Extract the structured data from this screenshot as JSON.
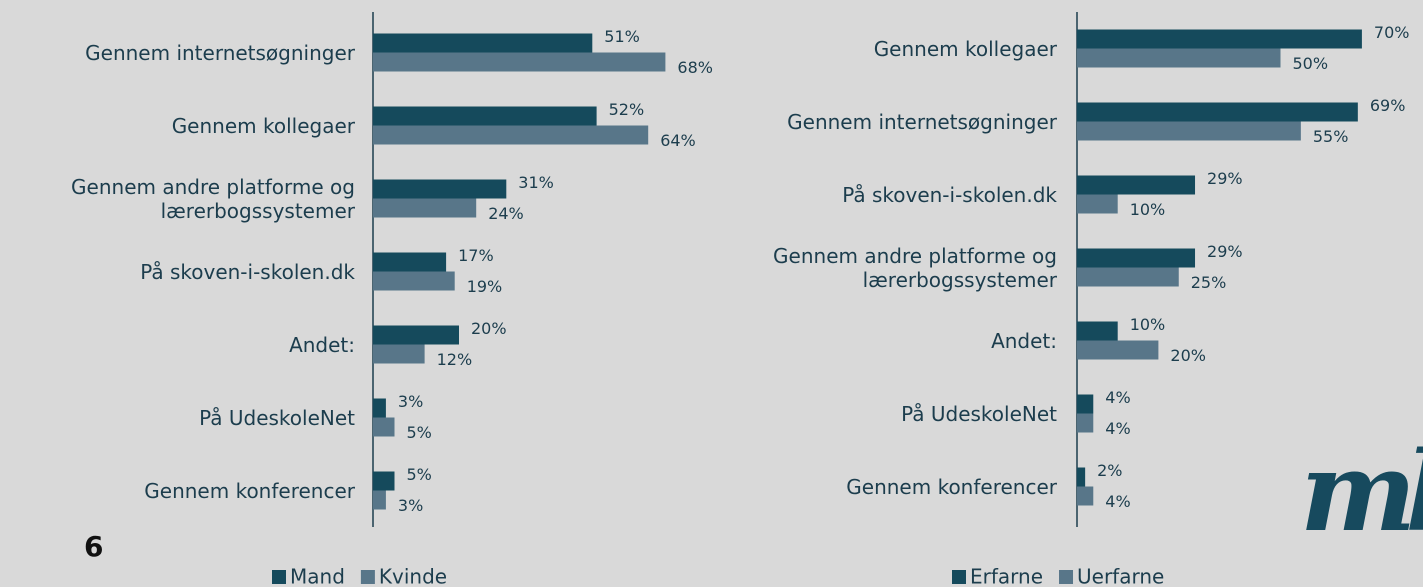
{
  "page_number": "6",
  "logo": "mb",
  "chart_data": [
    {
      "type": "bar",
      "orientation": "horizontal",
      "categories": [
        "Gennem internetsøgninger",
        "Gennem kollegaer",
        "Gennem andre platforme og lærerbogssystemer",
        "På skoven-i-skolen.dk",
        "Andet:",
        "På UdeskoleNet",
        "Gennem konferencer"
      ],
      "series": [
        {
          "name": "Mand",
          "color": "#154a5c",
          "values": [
            51,
            52,
            31,
            17,
            20,
            3,
            5
          ],
          "value_labels": [
            "51%",
            "52%",
            "31%",
            "17%",
            "20%",
            "3%",
            "5%"
          ]
        },
        {
          "name": "Kvinde",
          "color": "#587689",
          "values": [
            68,
            64,
            24,
            19,
            12,
            5,
            3
          ],
          "value_labels": [
            "68%",
            "64%",
            "24%",
            "19%",
            "12%",
            "5%",
            "3%"
          ]
        }
      ]
    },
    {
      "type": "bar",
      "orientation": "horizontal",
      "categories": [
        "Gennem kollegaer",
        "Gennem internetsøgninger",
        "På skoven-i-skolen.dk",
        "Gennem andre platforme og lærerbogssystemer",
        "Andet:",
        "På UdeskoleNet",
        "Gennem konferencer"
      ],
      "series": [
        {
          "name": "Erfarne",
          "color": "#154a5c",
          "values": [
            70,
            69,
            29,
            29,
            10,
            4,
            2
          ],
          "value_labels": [
            "70%",
            "69%",
            "29%",
            "29%",
            "10%",
            "4%",
            "2%"
          ]
        },
        {
          "name": "Uerfarne",
          "color": "#587689",
          "values": [
            50,
            55,
            10,
            25,
            20,
            4,
            4
          ],
          "value_labels": [
            "50%",
            "55%",
            "10%",
            "25%",
            "20%",
            "4%",
            "4%"
          ]
        }
      ]
    }
  ]
}
